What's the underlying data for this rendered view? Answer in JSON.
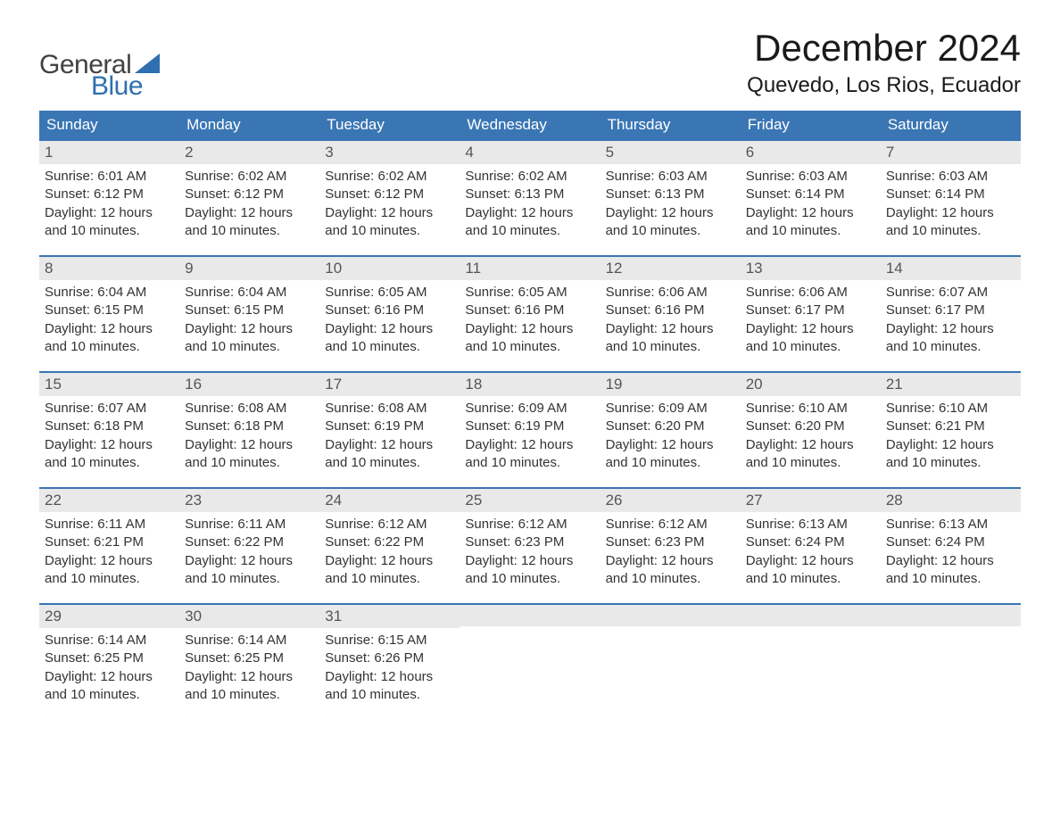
{
  "colors": {
    "header_bg": "#3a76b4",
    "header_text": "#ffffff",
    "daynum_bg": "#e9e9e9",
    "daynum_text": "#555555",
    "body_text": "#333333",
    "row_border": "#3a76b4",
    "logo_general": "#424242",
    "logo_blue": "#2f6faf",
    "sail_color": "#2f6faf",
    "page_bg": "#ffffff"
  },
  "typography": {
    "month_title_fontsize": 42,
    "location_fontsize": 24,
    "header_th_fontsize": 17,
    "daynum_fontsize": 17,
    "body_fontsize": 15,
    "logo_fontsize": 30
  },
  "logo": {
    "line1": "General",
    "line2": "Blue"
  },
  "title": "December 2024",
  "location": "Quevedo, Los Rios, Ecuador",
  "weekdays": [
    "Sunday",
    "Monday",
    "Tuesday",
    "Wednesday",
    "Thursday",
    "Friday",
    "Saturday"
  ],
  "weeks": [
    [
      {
        "day": "1",
        "sunrise": "Sunrise: 6:01 AM",
        "sunset": "Sunset: 6:12 PM",
        "dl1": "Daylight: 12 hours",
        "dl2": "and 10 minutes."
      },
      {
        "day": "2",
        "sunrise": "Sunrise: 6:02 AM",
        "sunset": "Sunset: 6:12 PM",
        "dl1": "Daylight: 12 hours",
        "dl2": "and 10 minutes."
      },
      {
        "day": "3",
        "sunrise": "Sunrise: 6:02 AM",
        "sunset": "Sunset: 6:12 PM",
        "dl1": "Daylight: 12 hours",
        "dl2": "and 10 minutes."
      },
      {
        "day": "4",
        "sunrise": "Sunrise: 6:02 AM",
        "sunset": "Sunset: 6:13 PM",
        "dl1": "Daylight: 12 hours",
        "dl2": "and 10 minutes."
      },
      {
        "day": "5",
        "sunrise": "Sunrise: 6:03 AM",
        "sunset": "Sunset: 6:13 PM",
        "dl1": "Daylight: 12 hours",
        "dl2": "and 10 minutes."
      },
      {
        "day": "6",
        "sunrise": "Sunrise: 6:03 AM",
        "sunset": "Sunset: 6:14 PM",
        "dl1": "Daylight: 12 hours",
        "dl2": "and 10 minutes."
      },
      {
        "day": "7",
        "sunrise": "Sunrise: 6:03 AM",
        "sunset": "Sunset: 6:14 PM",
        "dl1": "Daylight: 12 hours",
        "dl2": "and 10 minutes."
      }
    ],
    [
      {
        "day": "8",
        "sunrise": "Sunrise: 6:04 AM",
        "sunset": "Sunset: 6:15 PM",
        "dl1": "Daylight: 12 hours",
        "dl2": "and 10 minutes."
      },
      {
        "day": "9",
        "sunrise": "Sunrise: 6:04 AM",
        "sunset": "Sunset: 6:15 PM",
        "dl1": "Daylight: 12 hours",
        "dl2": "and 10 minutes."
      },
      {
        "day": "10",
        "sunrise": "Sunrise: 6:05 AM",
        "sunset": "Sunset: 6:16 PM",
        "dl1": "Daylight: 12 hours",
        "dl2": "and 10 minutes."
      },
      {
        "day": "11",
        "sunrise": "Sunrise: 6:05 AM",
        "sunset": "Sunset: 6:16 PM",
        "dl1": "Daylight: 12 hours",
        "dl2": "and 10 minutes."
      },
      {
        "day": "12",
        "sunrise": "Sunrise: 6:06 AM",
        "sunset": "Sunset: 6:16 PM",
        "dl1": "Daylight: 12 hours",
        "dl2": "and 10 minutes."
      },
      {
        "day": "13",
        "sunrise": "Sunrise: 6:06 AM",
        "sunset": "Sunset: 6:17 PM",
        "dl1": "Daylight: 12 hours",
        "dl2": "and 10 minutes."
      },
      {
        "day": "14",
        "sunrise": "Sunrise: 6:07 AM",
        "sunset": "Sunset: 6:17 PM",
        "dl1": "Daylight: 12 hours",
        "dl2": "and 10 minutes."
      }
    ],
    [
      {
        "day": "15",
        "sunrise": "Sunrise: 6:07 AM",
        "sunset": "Sunset: 6:18 PM",
        "dl1": "Daylight: 12 hours",
        "dl2": "and 10 minutes."
      },
      {
        "day": "16",
        "sunrise": "Sunrise: 6:08 AM",
        "sunset": "Sunset: 6:18 PM",
        "dl1": "Daylight: 12 hours",
        "dl2": "and 10 minutes."
      },
      {
        "day": "17",
        "sunrise": "Sunrise: 6:08 AM",
        "sunset": "Sunset: 6:19 PM",
        "dl1": "Daylight: 12 hours",
        "dl2": "and 10 minutes."
      },
      {
        "day": "18",
        "sunrise": "Sunrise: 6:09 AM",
        "sunset": "Sunset: 6:19 PM",
        "dl1": "Daylight: 12 hours",
        "dl2": "and 10 minutes."
      },
      {
        "day": "19",
        "sunrise": "Sunrise: 6:09 AM",
        "sunset": "Sunset: 6:20 PM",
        "dl1": "Daylight: 12 hours",
        "dl2": "and 10 minutes."
      },
      {
        "day": "20",
        "sunrise": "Sunrise: 6:10 AM",
        "sunset": "Sunset: 6:20 PM",
        "dl1": "Daylight: 12 hours",
        "dl2": "and 10 minutes."
      },
      {
        "day": "21",
        "sunrise": "Sunrise: 6:10 AM",
        "sunset": "Sunset: 6:21 PM",
        "dl1": "Daylight: 12 hours",
        "dl2": "and 10 minutes."
      }
    ],
    [
      {
        "day": "22",
        "sunrise": "Sunrise: 6:11 AM",
        "sunset": "Sunset: 6:21 PM",
        "dl1": "Daylight: 12 hours",
        "dl2": "and 10 minutes."
      },
      {
        "day": "23",
        "sunrise": "Sunrise: 6:11 AM",
        "sunset": "Sunset: 6:22 PM",
        "dl1": "Daylight: 12 hours",
        "dl2": "and 10 minutes."
      },
      {
        "day": "24",
        "sunrise": "Sunrise: 6:12 AM",
        "sunset": "Sunset: 6:22 PM",
        "dl1": "Daylight: 12 hours",
        "dl2": "and 10 minutes."
      },
      {
        "day": "25",
        "sunrise": "Sunrise: 6:12 AM",
        "sunset": "Sunset: 6:23 PM",
        "dl1": "Daylight: 12 hours",
        "dl2": "and 10 minutes."
      },
      {
        "day": "26",
        "sunrise": "Sunrise: 6:12 AM",
        "sunset": "Sunset: 6:23 PM",
        "dl1": "Daylight: 12 hours",
        "dl2": "and 10 minutes."
      },
      {
        "day": "27",
        "sunrise": "Sunrise: 6:13 AM",
        "sunset": "Sunset: 6:24 PM",
        "dl1": "Daylight: 12 hours",
        "dl2": "and 10 minutes."
      },
      {
        "day": "28",
        "sunrise": "Sunrise: 6:13 AM",
        "sunset": "Sunset: 6:24 PM",
        "dl1": "Daylight: 12 hours",
        "dl2": "and 10 minutes."
      }
    ],
    [
      {
        "day": "29",
        "sunrise": "Sunrise: 6:14 AM",
        "sunset": "Sunset: 6:25 PM",
        "dl1": "Daylight: 12 hours",
        "dl2": "and 10 minutes."
      },
      {
        "day": "30",
        "sunrise": "Sunrise: 6:14 AM",
        "sunset": "Sunset: 6:25 PM",
        "dl1": "Daylight: 12 hours",
        "dl2": "and 10 minutes."
      },
      {
        "day": "31",
        "sunrise": "Sunrise: 6:15 AM",
        "sunset": "Sunset: 6:26 PM",
        "dl1": "Daylight: 12 hours",
        "dl2": "and 10 minutes."
      },
      null,
      null,
      null,
      null
    ]
  ]
}
